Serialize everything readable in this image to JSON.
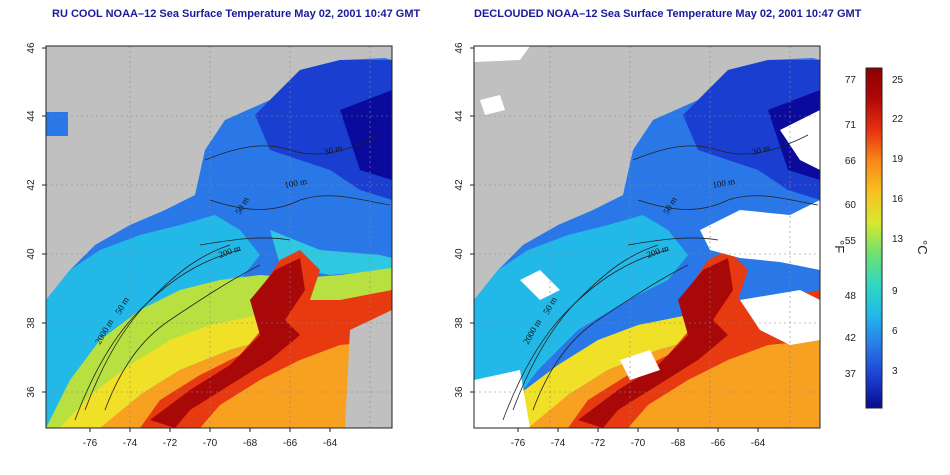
{
  "panels": [
    {
      "id": "left",
      "title": "RU COOL NOAA–12 Sea Surface Temperature May 02, 2001 10:47 GMT",
      "x_ticks": [
        "-76",
        "-74",
        "-72",
        "-70",
        "-68",
        "-66",
        "-64"
      ],
      "y_ticks": [
        "46",
        "44",
        "42",
        "40",
        "38",
        "36"
      ],
      "contour_labels": [
        "30 m",
        "100 m",
        "50 m",
        "200 m",
        "50 m",
        "2000 m"
      ]
    },
    {
      "id": "right",
      "title": "DECLOUDED NOAA–12 Sea Surface Temperature May 02, 2001 10:47 GMT",
      "x_ticks": [
        "-76",
        "-74",
        "-72",
        "-70",
        "-68",
        "-66",
        "-64"
      ],
      "y_ticks": [
        "46",
        "44",
        "42",
        "40",
        "38",
        "36"
      ],
      "contour_labels": [
        "30 m",
        "100 m",
        "50 m",
        "200 m",
        "50 m",
        "2000 m"
      ]
    }
  ],
  "colorbar": {
    "fahrenheit_label": "°F",
    "celsius_label": "°C",
    "fahrenheit_ticks": [
      "77",
      "71",
      "66",
      "60",
      "55",
      "48",
      "42",
      "37"
    ],
    "celsius_ticks": [
      "25",
      "22",
      "19",
      "16",
      "13",
      "9",
      "6",
      "3"
    ],
    "colors": [
      "#0a0a8c",
      "#1a3fd0",
      "#2a78e8",
      "#22b8e8",
      "#30d8c0",
      "#70e070",
      "#d8e830",
      "#f8c020",
      "#f88818",
      "#e83010",
      "#b00808",
      "#8c0000"
    ]
  },
  "colors": {
    "land": "#c0c0c0",
    "cloud": "#ffffff",
    "cold_water": "#1a3fd0",
    "warm_water": "#c81010",
    "title_color": "#1a1a9c"
  }
}
